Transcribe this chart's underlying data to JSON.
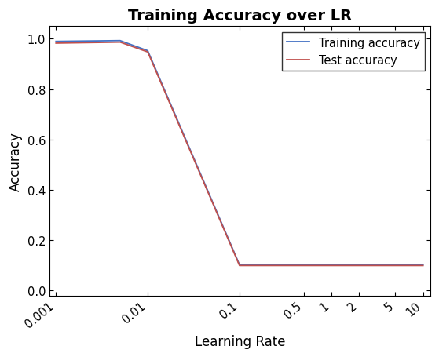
{
  "title": "Training Accuracy over LR",
  "xlabel": "Learning Rate",
  "ylabel": "Accuracy",
  "train_lr": [
    0.001,
    0.005,
    0.01,
    0.1,
    0.5,
    1,
    2,
    5,
    10
  ],
  "train_acc": [
    0.99,
    0.993,
    0.953,
    0.103,
    0.103,
    0.103,
    0.103,
    0.103,
    0.103
  ],
  "test_lr": [
    0.001,
    0.005,
    0.01,
    0.1,
    0.5,
    1,
    2,
    5,
    10
  ],
  "test_acc": [
    0.983,
    0.987,
    0.948,
    0.1,
    0.1,
    0.1,
    0.1,
    0.1,
    0.1
  ],
  "train_color": "#4472c4",
  "test_color": "#c0504d",
  "xticks": [
    0.001,
    0.01,
    0.1,
    0.5,
    1,
    2,
    5,
    10
  ],
  "xtick_labels": [
    "0.001",
    "0.01",
    "0.1",
    "0.5",
    "1",
    "2",
    "5",
    "10"
  ],
  "ylim": [
    -0.02,
    1.05
  ],
  "yticks": [
    0,
    0.2,
    0.4,
    0.6,
    0.8,
    1.0
  ],
  "xlim": [
    0.00085,
    12
  ],
  "legend_labels": [
    "Training accuracy",
    "Test accuracy"
  ],
  "title_fontsize": 14,
  "label_fontsize": 12,
  "tick_fontsize": 10.5
}
